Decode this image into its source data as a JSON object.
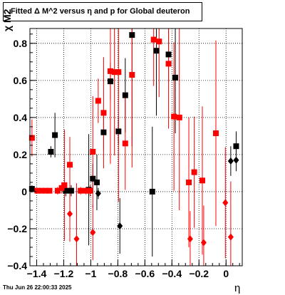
{
  "chart_data": {
    "type": "scatter",
    "title": "Fitted Δ M^2 versus η and p for Global deuteron",
    "xlabel": "η",
    "ylabel": "χ M2",
    "xlim": [
      -1.45,
      0.12
    ],
    "ylim": [
      -0.4,
      0.88
    ],
    "grid": true,
    "x_ticks": [
      -1.4,
      -1.2,
      -1,
      -0.8,
      -0.6,
      -0.4,
      -0.2,
      0
    ],
    "x_tick_labels": [
      "−1.4",
      "−1.2",
      "−1",
      "−0.8",
      "−0.6",
      "−0.4",
      "−0.2",
      "0"
    ],
    "y_ticks": [
      -0.4,
      -0.2,
      0,
      0.2,
      0.4,
      0.6,
      0.8
    ],
    "y_tick_labels": [
      "−0.4",
      "−0.2",
      "0",
      "0.2",
      "0.4",
      "0.6",
      "0.8"
    ],
    "series": [
      {
        "color": "#000000",
        "marker": "square",
        "points": [
          {
            "x": -1.435,
            "y": 0.015,
            "err": 0.02
          },
          {
            "x": -1.295,
            "y": 0.215,
            "err": 0.03
          },
          {
            "x": -1.265,
            "y": 0.305,
            "err": 0.12
          },
          {
            "x": -1.185,
            "y": 0.005,
            "err": 0.03
          },
          {
            "x": -1.145,
            "y": 0.005,
            "err": 0.03
          },
          {
            "x": -1.015,
            "y": 0.01,
            "err": 0.3
          },
          {
            "x": -0.985,
            "y": 0.07,
            "err": 0.08
          },
          {
            "x": -0.955,
            "y": 0.05,
            "err": 0.15
          },
          {
            "x": -0.905,
            "y": 0.32,
            "err": 0.1
          },
          {
            "x": -0.855,
            "y": 0.595,
            "err": 0.1
          },
          {
            "x": -0.795,
            "y": 0.325,
            "err": 0.07
          },
          {
            "x": -0.745,
            "y": 0.52,
            "err": 0.2
          },
          {
            "x": -0.695,
            "y": 0.845,
            "err": 0.6
          },
          {
            "x": -0.545,
            "y": 0.0,
            "err": 0.35
          },
          {
            "x": -0.515,
            "y": 0.76,
            "err": 0.35
          },
          {
            "x": -0.425,
            "y": 0.74,
            "err": 0.15
          },
          {
            "x": -0.375,
            "y": 0.615,
            "err": 0.3
          },
          {
            "x": 0.075,
            "y": 0.245,
            "err": 0.08
          }
        ]
      },
      {
        "color": "#000000",
        "marker": "diamond",
        "points": [
          {
            "x": -0.945,
            "y": -0.01,
            "err": 0.03
          },
          {
            "x": -0.785,
            "y": -0.185,
            "err": 0.15
          },
          {
            "x": 0.035,
            "y": 0.165,
            "err": 0.08
          },
          {
            "x": 0.075,
            "y": 0.17,
            "err": 0.06
          }
        ]
      },
      {
        "color": "#ff0000",
        "marker": "square",
        "points": [
          {
            "x": -1.435,
            "y": 0.29,
            "err": 0.1
          },
          {
            "x": -1.395,
            "y": 0.005,
            "err": 0.01
          },
          {
            "x": -1.365,
            "y": 0.005,
            "err": 0.01
          },
          {
            "x": -1.335,
            "y": 0.005,
            "err": 0.01
          },
          {
            "x": -1.305,
            "y": 0.005,
            "err": 0.01
          },
          {
            "x": -1.245,
            "y": 0.005,
            "err": 0.02
          },
          {
            "x": -1.215,
            "y": 0.02,
            "err": 0.03
          },
          {
            "x": -1.195,
            "y": 0.035,
            "err": 0.3
          },
          {
            "x": -1.155,
            "y": 0.145,
            "err": 0.15
          },
          {
            "x": -1.075,
            "y": 0.005,
            "err": 0.02
          },
          {
            "x": -1.035,
            "y": 0.005,
            "err": 0.02
          },
          {
            "x": -1.005,
            "y": 0.005,
            "err": 0.03
          },
          {
            "x": -0.985,
            "y": 0.215,
            "err": 0.3
          },
          {
            "x": -0.945,
            "y": 0.49,
            "err": 0.12
          },
          {
            "x": -0.905,
            "y": 0.425,
            "err": 0.3
          },
          {
            "x": -0.855,
            "y": 0.65,
            "err": 0.5
          },
          {
            "x": -0.825,
            "y": 0.645,
            "err": 0.45
          },
          {
            "x": -0.795,
            "y": 0.645,
            "err": 0.7
          },
          {
            "x": -0.745,
            "y": 0.26,
            "err": 0.25
          },
          {
            "x": -0.695,
            "y": 0.63,
            "err": 0.5
          },
          {
            "x": -0.535,
            "y": 0.82,
            "err": 0.25
          },
          {
            "x": -0.495,
            "y": 0.81,
            "err": 0.3
          },
          {
            "x": -0.425,
            "y": 0.69,
            "err": 0.35
          },
          {
            "x": -0.385,
            "y": 0.405,
            "err": 0.4
          },
          {
            "x": -0.345,
            "y": 0.4,
            "err": 0.5
          },
          {
            "x": -0.275,
            "y": 0.05,
            "err": 0.35
          },
          {
            "x": -0.235,
            "y": 0.105,
            "err": 0.3
          },
          {
            "x": -0.175,
            "y": 0.06,
            "err": 0.4
          },
          {
            "x": -0.075,
            "y": 0.315,
            "err": 0.5
          }
        ]
      },
      {
        "color": "#ff0000",
        "marker": "diamond",
        "points": [
          {
            "x": -1.155,
            "y": -0.12,
            "err": 0.15
          },
          {
            "x": -1.105,
            "y": -0.255,
            "err": 0.3
          },
          {
            "x": -0.985,
            "y": -0.22,
            "err": 0.15
          },
          {
            "x": -0.265,
            "y": -0.255,
            "err": 0.15
          },
          {
            "x": -0.165,
            "y": -0.275,
            "err": 0.2
          },
          {
            "x": -0.005,
            "y": -0.06,
            "err": 0.3
          },
          {
            "x": 0.035,
            "y": -0.245,
            "err": 0.3
          }
        ]
      }
    ],
    "footer": "Thu Jun 26 22:00:33 2025"
  }
}
